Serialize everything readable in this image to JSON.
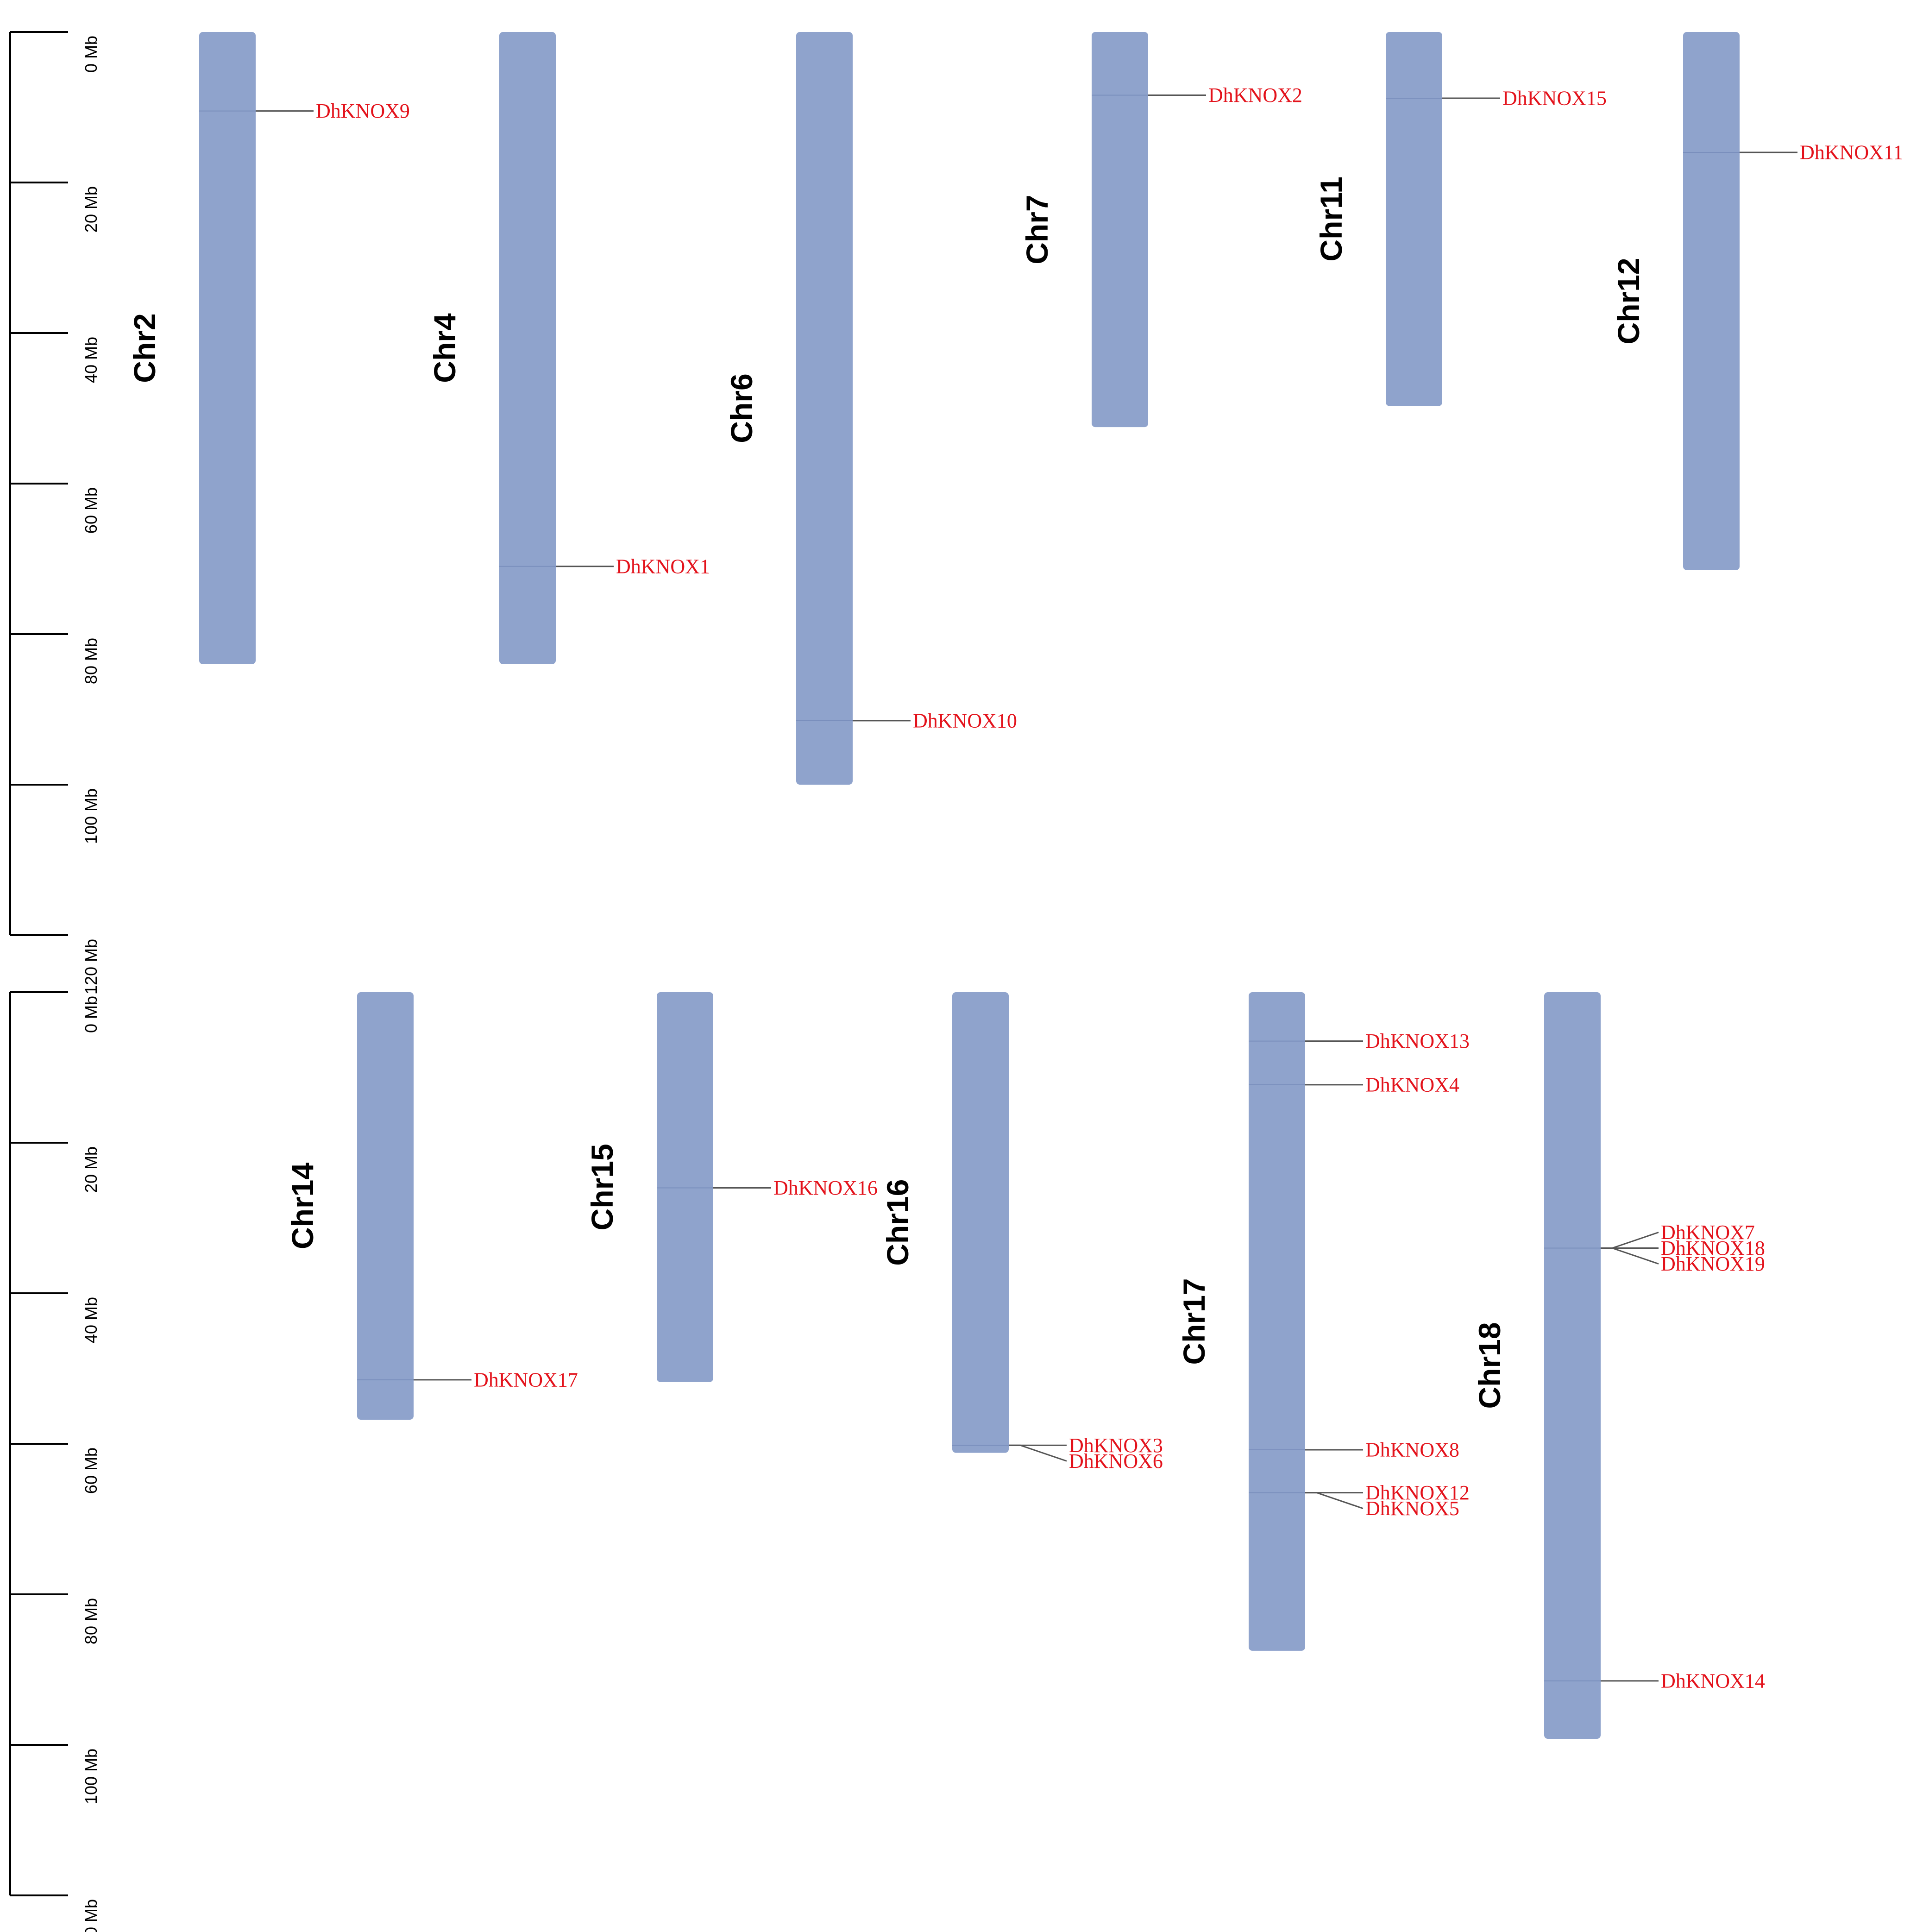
{
  "colors": {
    "chromosome": "#8fa3cc",
    "gene_label": "#e3121b",
    "connector": "#555555"
  },
  "axis": {
    "unit": "Mb",
    "ticks": [
      "0 Mb",
      "20 Mb",
      "40 Mb",
      "60 Mb",
      "80 Mb",
      "100 Mb",
      "120 Mb"
    ],
    "max": 120
  },
  "panels": [
    {
      "chromosomes": [
        {
          "name": "Chr2",
          "length": 84,
          "genes": [
            {
              "name": "DhKNOX9",
              "pos": 10.5
            }
          ]
        },
        {
          "name": "Chr4",
          "length": 84,
          "genes": [
            {
              "name": "DhKNOX1",
              "pos": 71
            }
          ]
        },
        {
          "name": "Chr6",
          "length": 100,
          "genes": [
            {
              "name": "DhKNOX10",
              "pos": 91.5
            }
          ]
        },
        {
          "name": "Chr7",
          "length": 52.5,
          "genes": [
            {
              "name": "DhKNOX2",
              "pos": 8.4
            }
          ]
        },
        {
          "name": "Chr11",
          "length": 49.7,
          "genes": [
            {
              "name": "DhKNOX15",
              "pos": 8.8
            }
          ]
        },
        {
          "name": "Chr12",
          "length": 71.5,
          "genes": [
            {
              "name": "DhKNOX11",
              "pos": 16
            }
          ]
        }
      ]
    },
    {
      "chromosomes": [
        {
          "name": "Chr14",
          "length": 56.8,
          "genes": [
            {
              "name": "DhKNOX17",
              "pos": 51.5
            }
          ]
        },
        {
          "name": "Chr15",
          "length": 51.8,
          "genes": [
            {
              "name": "DhKNOX16",
              "pos": 26
            }
          ]
        },
        {
          "name": "Chr16",
          "length": 61.2,
          "genes": [
            {
              "name": "DhKNOX3",
              "pos": 60.2
            },
            {
              "name": "DhKNOX6",
              "pos": 60.2
            }
          ]
        },
        {
          "name": "Chr17",
          "length": 87.5,
          "genes": [
            {
              "name": "DhKNOX13",
              "pos": 6.5
            },
            {
              "name": "DhKNOX4",
              "pos": 12.3
            },
            {
              "name": "DhKNOX8",
              "pos": 60.8
            },
            {
              "name": "DhKNOX12",
              "pos": 66.5
            },
            {
              "name": "DhKNOX5",
              "pos": 66.5
            }
          ]
        },
        {
          "name": "Chr18",
          "length": 99.2,
          "genes": [
            {
              "name": "DhKNOX7",
              "pos": 34
            },
            {
              "name": "DhKNOX18",
              "pos": 34
            },
            {
              "name": "DhKNOX19",
              "pos": 34
            },
            {
              "name": "DhKNOX14",
              "pos": 91.5
            }
          ]
        }
      ]
    }
  ]
}
